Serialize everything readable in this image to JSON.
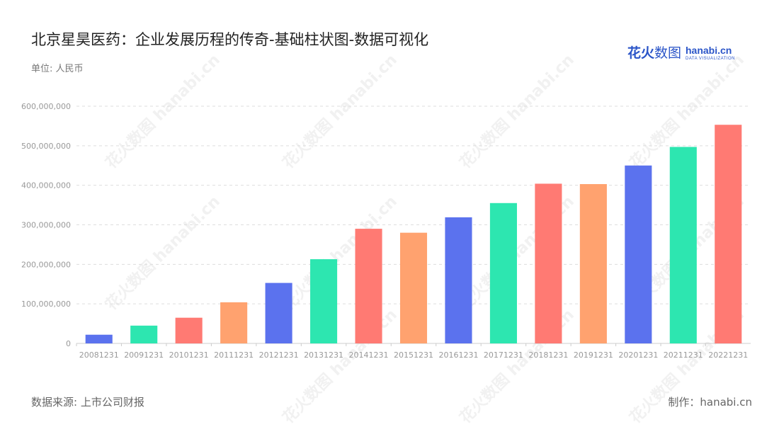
{
  "header": {
    "title": "北京星昊医药：企业发展历程的传奇-基础柱状图-数据可视化",
    "unit": "单位: 人民币"
  },
  "logo": {
    "cn_bold": "花火",
    "cn_thin": "数图",
    "en": "hanabi.cn",
    "en_sub": "DATA VISUALIZATION"
  },
  "footer": {
    "source": "数据来源: 上市公司财报",
    "credit": "制作：hanabi.cn"
  },
  "watermark_text": "花火数图 hanabi.cn",
  "colors": {
    "blue": "#5b72ee",
    "green": "#2de6b0",
    "red": "#ff7a73",
    "orange": "#ffa26f",
    "grid": "#dddddd",
    "axis": "#cccccc"
  },
  "chart_data": {
    "type": "bar",
    "categories": [
      "20081231",
      "20091231",
      "20101231",
      "20111231",
      "20121231",
      "20131231",
      "20141231",
      "20151231",
      "20161231",
      "20171231",
      "20181231",
      "20191231",
      "20201231",
      "20211231",
      "20221231"
    ],
    "values": [
      22000000,
      45000000,
      65000000,
      104000000,
      153000000,
      213000000,
      290000000,
      280000000,
      319000000,
      355000000,
      404000000,
      403000000,
      450000000,
      497000000,
      553000000
    ],
    "bar_colors": [
      "blue",
      "green",
      "red",
      "orange",
      "blue",
      "green",
      "red",
      "orange",
      "blue",
      "green",
      "red",
      "orange",
      "blue",
      "green",
      "red"
    ],
    "ylim": [
      0,
      600000000
    ],
    "yticks": [
      0,
      100000000,
      200000000,
      300000000,
      400000000,
      500000000,
      600000000
    ],
    "ytick_labels": [
      "0",
      "100,000,000",
      "200,000,000",
      "300,000,000",
      "400,000,000",
      "500,000,000",
      "600,000,000"
    ],
    "grid": true,
    "legend": "none"
  }
}
